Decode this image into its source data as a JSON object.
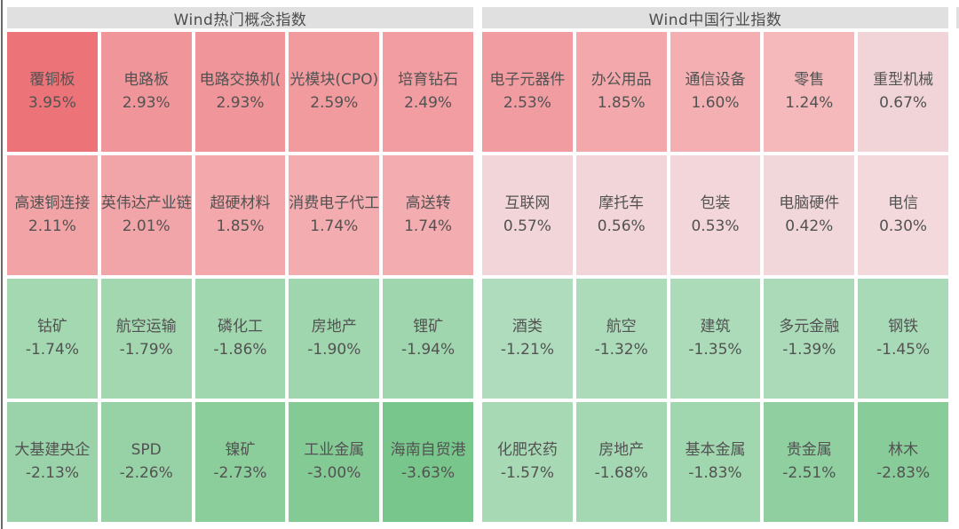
{
  "colors": {
    "page_bg": "#ffffff",
    "header_bg": "#e0e0e0",
    "header_text": "#4d4d4d",
    "tile_text": "#525252",
    "edge_line": "#6e6a66",
    "gain_strong": "#ec7478",
    "gain_pale": "#f3d9dc",
    "loss_pale": "#aedcbc",
    "loss_strong": "#79c68c"
  },
  "chart_data": [
    {
      "type": "heatmap",
      "title": "Wind热门概念指数",
      "rows": 4,
      "cols": 5,
      "cells": [
        {
          "label": "覆铜板",
          "value": "3.95%",
          "pct": 3.95,
          "color": "#ec7478"
        },
        {
          "label": "电路板",
          "value": "2.93%",
          "pct": 2.93,
          "color": "#f0969a"
        },
        {
          "label": "电路交换机(",
          "value": "2.93%",
          "pct": 2.93,
          "color": "#f0969a"
        },
        {
          "label": "光模块(CPO)",
          "value": "2.59%",
          "pct": 2.59,
          "color": "#f19b9f"
        },
        {
          "label": "培育钻石",
          "value": "2.49%",
          "pct": 2.49,
          "color": "#f19da1"
        },
        {
          "label": "高速铜连接",
          "value": "2.11%",
          "pct": 2.11,
          "color": "#f2a3a6"
        },
        {
          "label": "英伟达产业链",
          "value": "2.01%",
          "pct": 2.01,
          "color": "#f2a5a8"
        },
        {
          "label": "超硬材料",
          "value": "1.85%",
          "pct": 1.85,
          "color": "#f3a9ac"
        },
        {
          "label": "消费电子代工",
          "value": "1.74%",
          "pct": 1.74,
          "color": "#f3acaf"
        },
        {
          "label": "高送转",
          "value": "1.74%",
          "pct": 1.74,
          "color": "#f3acaf"
        },
        {
          "label": "钴矿",
          "value": "-1.74%",
          "pct": -1.74,
          "color": "#a3d8b1"
        },
        {
          "label": "航空运输",
          "value": "-1.79%",
          "pct": -1.79,
          "color": "#a2d7b0"
        },
        {
          "label": "磷化工",
          "value": "-1.86%",
          "pct": -1.86,
          "color": "#a1d7af"
        },
        {
          "label": "房地产",
          "value": "-1.90%",
          "pct": -1.9,
          "color": "#a0d6ae"
        },
        {
          "label": "锂矿",
          "value": "-1.94%",
          "pct": -1.94,
          "color": "#9fd6ad"
        },
        {
          "label": "大基建央企",
          "value": "-2.13%",
          "pct": -2.13,
          "color": "#9ad3a9"
        },
        {
          "label": "SPD",
          "value": "-2.26%",
          "pct": -2.26,
          "color": "#97d2a6"
        },
        {
          "label": "镍矿",
          "value": "-2.73%",
          "pct": -2.73,
          "color": "#8bcd9b"
        },
        {
          "label": "工业金属",
          "value": "-3.00%",
          "pct": -3.0,
          "color": "#84ca95"
        },
        {
          "label": "海南自贸港",
          "value": "-3.63%",
          "pct": -3.63,
          "color": "#79c68c"
        }
      ]
    },
    {
      "type": "heatmap",
      "title": "Wind中国行业指数",
      "rows": 4,
      "cols": 5,
      "cells": [
        {
          "label": "电子元器件",
          "value": "2.53%",
          "pct": 2.53,
          "color": "#f19ca0"
        },
        {
          "label": "办公用品",
          "value": "1.85%",
          "pct": 1.85,
          "color": "#f3a9ac"
        },
        {
          "label": "通信设备",
          "value": "1.60%",
          "pct": 1.6,
          "color": "#f4afb2"
        },
        {
          "label": "零售",
          "value": "1.24%",
          "pct": 1.24,
          "color": "#f5b8bb"
        },
        {
          "label": "重型机械",
          "value": "0.67%",
          "pct": 0.67,
          "color": "#f1d4d7"
        },
        {
          "label": "互联网",
          "value": "0.57%",
          "pct": 0.57,
          "color": "#f2d5d8"
        },
        {
          "label": "摩托车",
          "value": "0.56%",
          "pct": 0.56,
          "color": "#f2d5d8"
        },
        {
          "label": "包装",
          "value": "0.53%",
          "pct": 0.53,
          "color": "#f2d6d9"
        },
        {
          "label": "电脑硬件",
          "value": "0.42%",
          "pct": 0.42,
          "color": "#f2d7da"
        },
        {
          "label": "电信",
          "value": "0.30%",
          "pct": 0.3,
          "color": "#f3d9dc"
        },
        {
          "label": "酒类",
          "value": "-1.21%",
          "pct": -1.21,
          "color": "#aedcbc"
        },
        {
          "label": "航空",
          "value": "-1.32%",
          "pct": -1.32,
          "color": "#acdbba"
        },
        {
          "label": "建筑",
          "value": "-1.35%",
          "pct": -1.35,
          "color": "#abdbb9"
        },
        {
          "label": "多元金融",
          "value": "-1.39%",
          "pct": -1.39,
          "color": "#aadab8"
        },
        {
          "label": "钢铁",
          "value": "-1.45%",
          "pct": -1.45,
          "color": "#a9dab7"
        },
        {
          "label": "化肥农药",
          "value": "-1.57%",
          "pct": -1.57,
          "color": "#a6d9b4"
        },
        {
          "label": "房地产",
          "value": "-1.68%",
          "pct": -1.68,
          "color": "#a4d8b2"
        },
        {
          "label": "基本金属",
          "value": "-1.83%",
          "pct": -1.83,
          "color": "#a1d7af"
        },
        {
          "label": "贵金属",
          "value": "-2.51%",
          "pct": -2.51,
          "color": "#8fcfa0"
        },
        {
          "label": "林木",
          "value": "-2.83%",
          "pct": -2.83,
          "color": "#88cc99"
        }
      ]
    }
  ]
}
